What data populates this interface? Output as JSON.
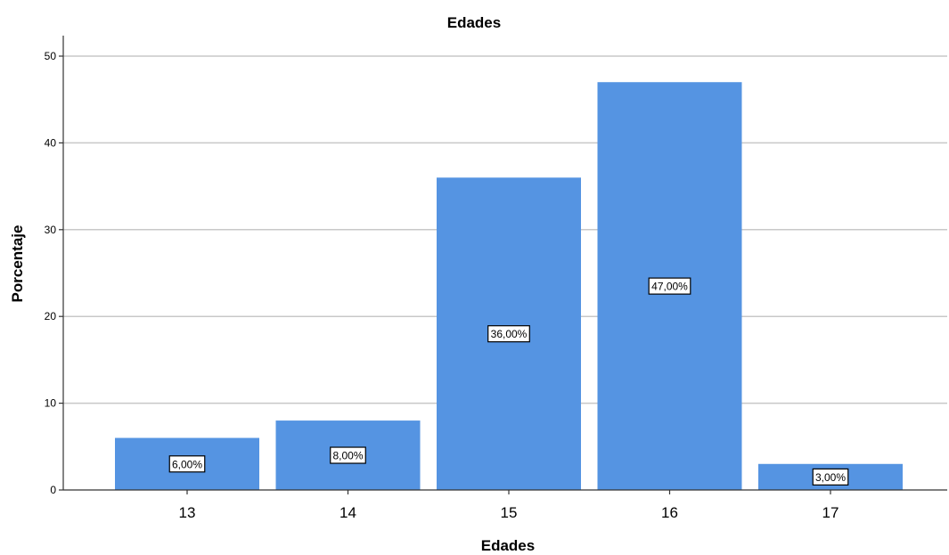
{
  "chart_data": {
    "type": "bar",
    "title": "Edades",
    "xlabel": "Edades",
    "ylabel": "Porcentaje",
    "categories": [
      "13",
      "14",
      "15",
      "16",
      "17"
    ],
    "values": [
      6,
      8,
      36,
      47,
      3
    ],
    "data_labels": [
      "6,00%",
      "8,00%",
      "36,00%",
      "47,00%",
      "3,00%"
    ],
    "ylim": [
      0,
      52
    ],
    "yticks": [
      0,
      10,
      20,
      30,
      40,
      50
    ],
    "grid": true,
    "bar_color": "#5594e2"
  }
}
